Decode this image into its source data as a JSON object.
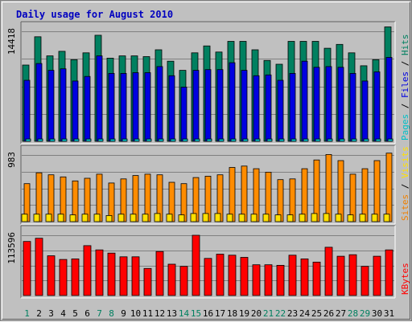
{
  "chart_data": {
    "type": "bar",
    "title": "Daily usage for August 2010",
    "categories": [
      "1",
      "2",
      "3",
      "4",
      "5",
      "6",
      "7",
      "8",
      "9",
      "10",
      "11",
      "12",
      "13",
      "14",
      "15",
      "16",
      "17",
      "18",
      "19",
      "20",
      "21",
      "22",
      "23",
      "24",
      "25",
      "26",
      "27",
      "28",
      "29",
      "30",
      "31"
    ],
    "weekend_days": [
      "1",
      "7",
      "8",
      "14",
      "15",
      "21",
      "22",
      "28",
      "29"
    ],
    "panels": [
      {
        "id": "hits",
        "max_label": "14418",
        "ymax": 14418,
        "legend": [
          {
            "text": "Pages",
            "color": "#00c0c8"
          },
          {
            "text": " / ",
            "color": "#000000"
          },
          {
            "text": "Files",
            "color": "#0000e0"
          },
          {
            "text": " / ",
            "color": "#000000"
          },
          {
            "text": "Hits",
            "color": "#008060"
          }
        ],
        "series": [
          {
            "name": "Hits",
            "color": "#008060",
            "values": [
              10000,
              13700,
              11200,
              11800,
              10700,
              11600,
              13900,
              10900,
              11200,
              11200,
              11100,
              12000,
              10500,
              9300,
              11600,
              12500,
              11700,
              13100,
              13100,
              12000,
              10600,
              10100,
              13100,
              13100,
              13100,
              12200,
              12700,
              11600,
              9900,
              10700,
              15000
            ]
          },
          {
            "name": "Files",
            "color": "#0000e0",
            "values": [
              8000,
              10200,
              9300,
              9500,
              7900,
              8500,
              11200,
              8900,
              8900,
              9000,
              9000,
              9800,
              8600,
              7100,
              9300,
              9400,
              9400,
              10300,
              9300,
              8600,
              8700,
              8000,
              8900,
              10500,
              9700,
              9800,
              9700,
              8900,
              7900,
              9100,
              11000
            ]
          },
          {
            "name": "Pages",
            "color": "#00c0c8",
            "values": [
              300,
              300,
              300,
              300,
              300,
              300,
              300,
              300,
              300,
              300,
              300,
              300,
              300,
              300,
              300,
              300,
              300,
              300,
              300,
              300,
              300,
              300,
              300,
              300,
              300,
              300,
              300,
              300,
              300,
              300,
              300
            ]
          }
        ]
      },
      {
        "id": "visits",
        "max_label": "983",
        "ymax": 983,
        "legend": [
          {
            "text": "Sites",
            "color": "#f08000"
          },
          {
            "text": " / ",
            "color": "#000000"
          },
          {
            "text": "Visits",
            "color": "#ffe000"
          }
        ],
        "series": [
          {
            "name": "Sites",
            "color": "#ff8c00",
            "values": [
              560,
              720,
              690,
              660,
              600,
              640,
              700,
              570,
              630,
              680,
              700,
              690,
              580,
              560,
              650,
              670,
              690,
              800,
              820,
              780,
              730,
              620,
              630,
              780,
              910,
              990,
              900,
              700,
              780,
              900,
              1010
            ]
          },
          {
            "name": "Visits",
            "color": "#ffe000",
            "values": [
              110,
              110,
              110,
              110,
              100,
              110,
              110,
              90,
              110,
              110,
              110,
              120,
              110,
              100,
              120,
              120,
              120,
              110,
              110,
              110,
              110,
              100,
              100,
              110,
              120,
              120,
              110,
              100,
              110,
              110,
              110
            ]
          }
        ]
      },
      {
        "id": "kbytes",
        "max_label": "113596",
        "ymax": 113596,
        "legend": [
          {
            "text": "KBytes",
            "color": "#ff0000"
          }
        ],
        "series": [
          {
            "name": "KBytes",
            "color": "#ff0000",
            "values": [
              102000,
              108000,
              75000,
              68000,
              69000,
              94000,
              86000,
              80000,
              73000,
              73000,
              51000,
              83000,
              59000,
              55000,
              113596,
              70000,
              78000,
              76000,
              72000,
              58000,
              58000,
              57000,
              76000,
              69000,
              63000,
              91000,
              74000,
              77000,
              55000,
              74000,
              86000
            ]
          }
        ]
      }
    ]
  }
}
